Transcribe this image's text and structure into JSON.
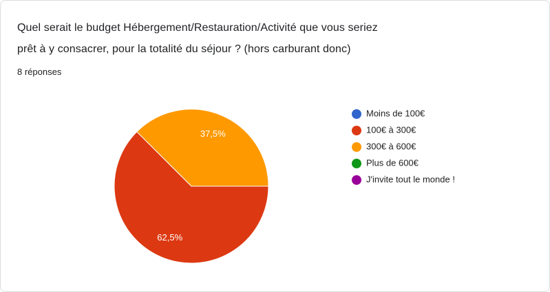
{
  "header": {
    "title_line1": "Quel serait le budget Hébergement/Restauration/Activité que vous seriez",
    "title_line2": "prêt à y consacrer, pour la totalité du séjour ? (hors carburant donc)",
    "responses": "8 réponses"
  },
  "chart_data": {
    "type": "pie",
    "categories": [
      "Moins de 100€",
      "100€ à 300€",
      "300€ à 600€",
      "Plus de 600€",
      "J'invite tout le monde !"
    ],
    "values": [
      0,
      62.5,
      37.5,
      0,
      0
    ],
    "value_labels": [
      null,
      "62,5%",
      "37,5%",
      null,
      null
    ],
    "colors": [
      "#3366cc",
      "#dc3912",
      "#ff9900",
      "#109618",
      "#990099"
    ],
    "legend": "right"
  }
}
